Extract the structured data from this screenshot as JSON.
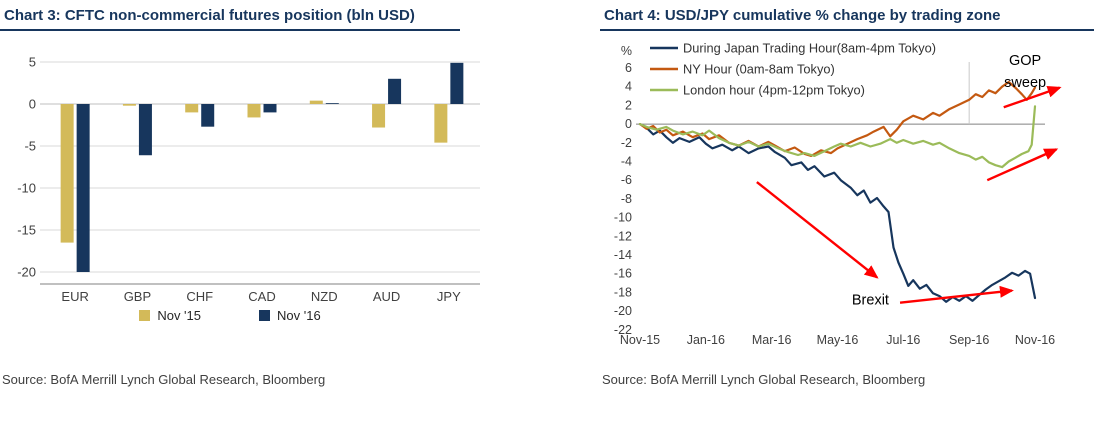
{
  "panels": [
    {
      "title": "Chart 3: CFTC non-commercial futures position (bln USD)",
      "source": "Source: BofA Merrill Lynch Global Research, Bloomberg"
    },
    {
      "title": "Chart 4: USD/JPY cumulative % change by trading zone",
      "source": "Source: BofA Merrill Lynch Global Research, Bloomberg"
    }
  ],
  "colors": {
    "title_navy": "#17365d",
    "gold": "#d3ba59",
    "navy": "#17365d",
    "orange": "#c45911",
    "green": "#9bbb59",
    "arrow_red": "#ff0000"
  },
  "chart_data": [
    {
      "type": "bar",
      "title": "Chart 3: CFTC non-commercial futures position (bln USD)",
      "xlabel": "",
      "ylabel": "bln USD",
      "categories": [
        "EUR",
        "GBP",
        "CHF",
        "CAD",
        "NZD",
        "AUD",
        "JPY"
      ],
      "series": [
        {
          "name": "Nov '15",
          "color": "#d3ba59",
          "values": [
            -16.5,
            -0.2,
            -1.0,
            -1.6,
            0.4,
            -2.8,
            -4.6
          ]
        },
        {
          "name": "Nov '16",
          "color": "#17365d",
          "values": [
            -20.0,
            -6.1,
            -2.7,
            -1.0,
            0.1,
            3.0,
            4.9
          ]
        }
      ],
      "ylim": [
        -20,
        5
      ],
      "yticks": [
        5,
        0,
        -5,
        -10,
        -15,
        -20
      ],
      "grid": true,
      "legend_position": "bottom"
    },
    {
      "type": "line",
      "title": "Chart 4: USD/JPY cumulative % change by trading zone",
      "xlabel": "",
      "ylabel": "%",
      "xlim": [
        0,
        12
      ],
      "ylim": [
        -22,
        6
      ],
      "ytick_step": 2,
      "xtick_months": [
        0,
        2,
        4,
        6,
        8,
        10,
        12
      ],
      "xticklabels": [
        "Nov-15",
        "Jan-16",
        "Mar-16",
        "May-16",
        "Jul-16",
        "Sep-16",
        "Nov-16"
      ],
      "grid": false,
      "legend_position": "top-left",
      "series": [
        {
          "name": "During Japan Trading Hour(8am-4pm Tokyo)",
          "color": "#17365d",
          "points": [
            [
              0,
              0
            ],
            [
              0.2,
              -0.4
            ],
            [
              0.4,
              -1.1
            ],
            [
              0.6,
              -0.7
            ],
            [
              0.8,
              -1.4
            ],
            [
              1,
              -2
            ],
            [
              1.2,
              -1.5
            ],
            [
              1.5,
              -1.9
            ],
            [
              1.8,
              -1.4
            ],
            [
              2,
              -2.1
            ],
            [
              2.2,
              -2.6
            ],
            [
              2.5,
              -2.2
            ],
            [
              2.8,
              -2.8
            ],
            [
              3,
              -2.4
            ],
            [
              3.3,
              -3.1
            ],
            [
              3.6,
              -2.6
            ],
            [
              3.9,
              -2.4
            ],
            [
              4.1,
              -3
            ],
            [
              4.4,
              -3.6
            ],
            [
              4.6,
              -4.4
            ],
            [
              4.9,
              -4.1
            ],
            [
              5.1,
              -4.9
            ],
            [
              5.3,
              -4.5
            ],
            [
              5.6,
              -5.6
            ],
            [
              5.9,
              -5.2
            ],
            [
              6.1,
              -6
            ],
            [
              6.4,
              -6.8
            ],
            [
              6.6,
              -7.6
            ],
            [
              6.8,
              -7.1
            ],
            [
              7,
              -8.4
            ],
            [
              7.2,
              -7.9
            ],
            [
              7.4,
              -8.8
            ],
            [
              7.55,
              -9.4
            ],
            [
              7.7,
              -13.2
            ],
            [
              7.85,
              -14.8
            ],
            [
              8,
              -16
            ],
            [
              8.15,
              -17.3
            ],
            [
              8.3,
              -16.7
            ],
            [
              8.5,
              -17.6
            ],
            [
              8.7,
              -17.2
            ],
            [
              8.9,
              -18.1
            ],
            [
              9.1,
              -18.4
            ],
            [
              9.3,
              -19
            ],
            [
              9.5,
              -18.5
            ],
            [
              9.7,
              -18.9
            ],
            [
              9.9,
              -18.4
            ],
            [
              10.1,
              -18.9
            ],
            [
              10.3,
              -18.3
            ],
            [
              10.5,
              -17.7
            ],
            [
              10.7,
              -17.2
            ],
            [
              10.9,
              -16.8
            ],
            [
              11.1,
              -16.4
            ],
            [
              11.3,
              -15.9
            ],
            [
              11.5,
              -16.2
            ],
            [
              11.7,
              -15.7
            ],
            [
              11.85,
              -16
            ],
            [
              12,
              -18.6
            ]
          ]
        },
        {
          "name": "NY Hour (0am-8am Tokyo)",
          "color": "#c45911",
          "points": [
            [
              0,
              0
            ],
            [
              0.2,
              -0.5
            ],
            [
              0.4,
              -0.2
            ],
            [
              0.6,
              -0.9
            ],
            [
              0.8,
              -0.6
            ],
            [
              1,
              -1.2
            ],
            [
              1.3,
              -0.8
            ],
            [
              1.6,
              -1.4
            ],
            [
              1.9,
              -1
            ],
            [
              2.1,
              -1.6
            ],
            [
              2.4,
              -1.2
            ],
            [
              2.7,
              -2
            ],
            [
              3,
              -2.3
            ],
            [
              3.3,
              -1.8
            ],
            [
              3.6,
              -2.4
            ],
            [
              3.9,
              -1.9
            ],
            [
              4.1,
              -2.3
            ],
            [
              4.4,
              -2.9
            ],
            [
              4.7,
              -2.5
            ],
            [
              5,
              -3.2
            ],
            [
              5.2,
              -3.4
            ],
            [
              5.5,
              -2.8
            ],
            [
              5.8,
              -3.1
            ],
            [
              6,
              -2.6
            ],
            [
              6.3,
              -2.1
            ],
            [
              6.6,
              -1.6
            ],
            [
              6.9,
              -1.2
            ],
            [
              7.1,
              -0.8
            ],
            [
              7.4,
              -0.3
            ],
            [
              7.6,
              -1.3
            ],
            [
              7.8,
              -0.6
            ],
            [
              8,
              0.3
            ],
            [
              8.3,
              0.9
            ],
            [
              8.6,
              0.5
            ],
            [
              8.9,
              1.2
            ],
            [
              9.1,
              0.9
            ],
            [
              9.4,
              1.6
            ],
            [
              9.7,
              2.1
            ],
            [
              10,
              2.6
            ],
            [
              10.2,
              3.2
            ],
            [
              10.4,
              2.9
            ],
            [
              10.6,
              3.6
            ],
            [
              10.8,
              3.3
            ],
            [
              11,
              4
            ],
            [
              11.2,
              4.5
            ],
            [
              11.4,
              3.9
            ],
            [
              11.6,
              3.2
            ],
            [
              11.75,
              2.6
            ],
            [
              11.9,
              3.3
            ],
            [
              12,
              3.9
            ]
          ]
        },
        {
          "name": "London hour (4pm-12pm Tokyo)",
          "color": "#9bbb59",
          "points": [
            [
              0,
              0
            ],
            [
              0.2,
              -0.3
            ],
            [
              0.5,
              -0.6
            ],
            [
              0.8,
              -0.3
            ],
            [
              1,
              -0.7
            ],
            [
              1.3,
              -1.1
            ],
            [
              1.6,
              -0.8
            ],
            [
              1.9,
              -1.2
            ],
            [
              2.1,
              -0.7
            ],
            [
              2.4,
              -1.5
            ],
            [
              2.7,
              -2
            ],
            [
              3,
              -2.3
            ],
            [
              3.3,
              -1.9
            ],
            [
              3.6,
              -2.4
            ],
            [
              3.9,
              -2.1
            ],
            [
              4.2,
              -2.6
            ],
            [
              4.5,
              -3
            ],
            [
              4.8,
              -3.3
            ],
            [
              5,
              -3.1
            ],
            [
              5.3,
              -3.4
            ],
            [
              5.6,
              -2.9
            ],
            [
              5.9,
              -2.4
            ],
            [
              6.1,
              -2.1
            ],
            [
              6.4,
              -2.4
            ],
            [
              6.7,
              -2
            ],
            [
              7,
              -2.4
            ],
            [
              7.3,
              -2.1
            ],
            [
              7.6,
              -1.6
            ],
            [
              7.8,
              -2
            ],
            [
              8,
              -1.7
            ],
            [
              8.3,
              -2.1
            ],
            [
              8.6,
              -1.8
            ],
            [
              8.9,
              -2.2
            ],
            [
              9.1,
              -2
            ],
            [
              9.4,
              -2.6
            ],
            [
              9.7,
              -3.1
            ],
            [
              10,
              -3.4
            ],
            [
              10.2,
              -3.8
            ],
            [
              10.4,
              -3.5
            ],
            [
              10.6,
              -4.1
            ],
            [
              10.8,
              -4.4
            ],
            [
              11,
              -4.6
            ],
            [
              11.2,
              -4
            ],
            [
              11.4,
              -3.6
            ],
            [
              11.6,
              -3.2
            ],
            [
              11.8,
              -2.9
            ],
            [
              11.9,
              -2.2
            ],
            [
              12,
              1.9
            ]
          ]
        }
      ],
      "annotations": {
        "arrow_color": "#ff0000",
        "texts": [
          {
            "lines": [
              "GOP",
              "sweep"
            ],
            "at": [
              11.7,
              6.3
            ]
          },
          {
            "lines": [
              "Brexit"
            ],
            "at": [
              7.0,
              -19.3
            ]
          }
        ],
        "arrows": [
          {
            "from": [
              3.55,
              -6.2
            ],
            "to": [
              7.2,
              -16.4
            ]
          },
          {
            "from": [
              7.9,
              -19.1
            ],
            "to": [
              11.3,
              -17.8
            ]
          },
          {
            "from": [
              11.05,
              1.8
            ],
            "to": [
              12.75,
              3.9
            ]
          },
          {
            "from": [
              10.55,
              -6.0
            ],
            "to": [
              12.65,
              -2.7
            ]
          }
        ]
      }
    }
  ]
}
